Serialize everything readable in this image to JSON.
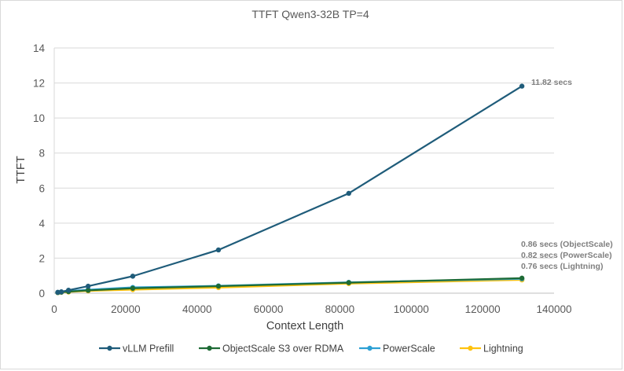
{
  "chart_data": {
    "type": "line",
    "title": "TTFT Qwen3-32B TP=4",
    "xlabel": "Context Length",
    "ylabel": "TTFT",
    "xlim": [
      0,
      140000
    ],
    "ylim": [
      0,
      14
    ],
    "xticks": [
      0,
      20000,
      40000,
      60000,
      80000,
      100000,
      120000,
      140000
    ],
    "yticks": [
      0,
      2,
      4,
      6,
      8,
      10,
      12,
      14
    ],
    "grid": "horizontal",
    "legend_position": "bottom",
    "series": [
      {
        "name": "vLLM Prefill",
        "color": "#1f5c7a",
        "x": [
          1000,
          2000,
          4000,
          9500,
          22000,
          46000,
          82500,
          131000
        ],
        "y": [
          0.05,
          0.08,
          0.17,
          0.4,
          0.97,
          2.47,
          5.7,
          11.82
        ]
      },
      {
        "name": "ObjectScale S3 over RDMA",
        "color": "#1e6b35",
        "x": [
          1000,
          2000,
          4000,
          9500,
          22000,
          46000,
          82500,
          131000
        ],
        "y": [
          0.04,
          0.06,
          0.09,
          0.16,
          0.28,
          0.4,
          0.6,
          0.86
        ]
      },
      {
        "name": "PowerScale",
        "color": "#2da0d4",
        "x": [
          1000,
          2000,
          4000,
          9500,
          22000,
          46000,
          82500,
          131000
        ],
        "y": [
          0.04,
          0.06,
          0.12,
          0.2,
          0.33,
          0.42,
          0.62,
          0.82
        ]
      },
      {
        "name": "Lightning",
        "color": "#ffc20e",
        "x": [
          1000,
          2000,
          4000,
          9500,
          22000,
          46000,
          82500,
          131000
        ],
        "y": [
          0.03,
          0.05,
          0.07,
          0.13,
          0.2,
          0.32,
          0.55,
          0.76
        ]
      }
    ],
    "annotations": [
      {
        "text": "11.82 secs"
      },
      {
        "text": "0.86 secs (ObjectScale)"
      },
      {
        "text": "0.82 secs (PowerScale)"
      },
      {
        "text": "0.76 secs (Lightning)"
      }
    ]
  }
}
